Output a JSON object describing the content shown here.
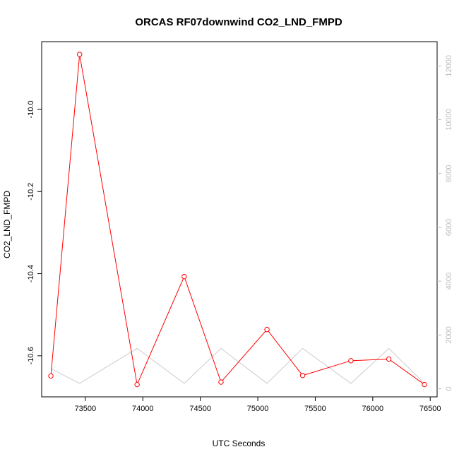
{
  "chart_data": {
    "type": "line",
    "title": "ORCAS RF07downwind CO2_LND_FMPD",
    "xlabel": "UTC Seconds",
    "ylabel": "CO2_LND_FMPD",
    "xlim": [
      73120,
      76560
    ],
    "ylim": [
      -10.7,
      -9.835
    ],
    "y2lim": [
      -300,
      12900
    ],
    "x_ticks": [
      73500,
      74000,
      74500,
      75000,
      75500,
      76000,
      76500
    ],
    "x_tick_labels": [
      "73500",
      "74000",
      "74500",
      "75000",
      "75500",
      "76000",
      "76500"
    ],
    "y_ticks": [
      -10.6,
      -10.4,
      -10.2,
      -10.0
    ],
    "y_tick_labels": [
      "-10.6",
      "-10.4",
      "-10.2",
      "-10.0"
    ],
    "y2_ticks": [
      0,
      2000,
      4000,
      6000,
      8000,
      10000,
      12000
    ],
    "y2_tick_labels": [
      "0",
      "2000",
      "4000",
      "6000",
      "8000",
      "10000",
      "12000"
    ],
    "grid": false,
    "series": [
      {
        "axis": "left",
        "color": "#ff0000",
        "marker": "open-circle",
        "x": [
          73200,
          73450,
          73950,
          74360,
          74680,
          75080,
          75390,
          75810,
          76140,
          76450
        ],
        "y": [
          -10.649,
          -9.866,
          -10.67,
          -10.407,
          -10.664,
          -10.536,
          -10.648,
          -10.612,
          -10.608,
          -10.67
        ]
      },
      {
        "axis": "right",
        "color": "#cccccc",
        "marker": "none",
        "x": [
          73200,
          73450,
          73950,
          74360,
          74680,
          75080,
          75390,
          75810,
          76140,
          76450
        ],
        "y": [
          750,
          200,
          1500,
          200,
          1500,
          200,
          1500,
          200,
          1500,
          200
        ]
      }
    ]
  }
}
